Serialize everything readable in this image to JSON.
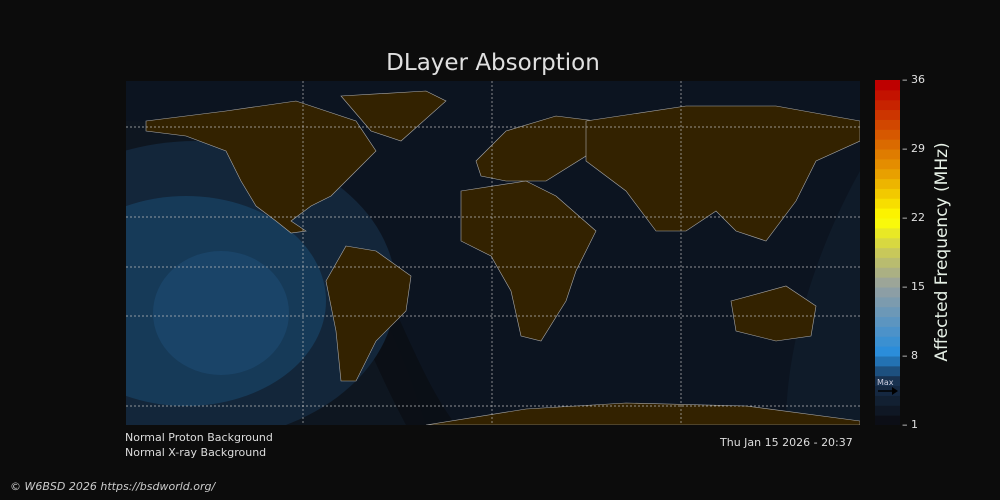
{
  "title": "DLayer Absorption",
  "colorbar": {
    "label": "Affected Frequency (MHz)",
    "ticks": [
      "36",
      "29",
      "22",
      "15",
      "8",
      "1"
    ],
    "min": 1,
    "max": 36,
    "max_marker": "Max",
    "max_marker_value": 5
  },
  "status": {
    "proton": "Normal Proton Background",
    "xray": "Normal X-ray Background",
    "timestamp": "Thu Jan 15 2026 - 20:37"
  },
  "footer": "© W6BSD 2026 https://bsdworld.org/",
  "colors": {
    "ocean": "#0c1420",
    "land": "#332200",
    "night": "#0a0d12",
    "absorption": "#1a4468",
    "background": "#0c0c0c"
  }
}
